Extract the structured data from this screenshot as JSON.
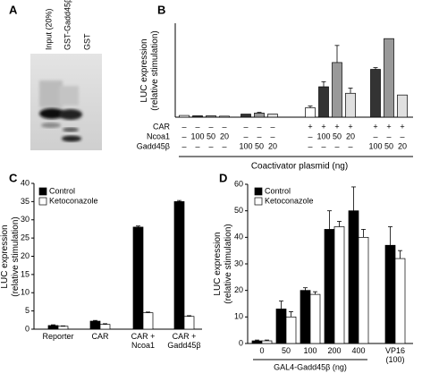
{
  "gel": {
    "panel_label": "A",
    "lanes": [
      "Input (20%)",
      "GST-Gadd45β",
      "GST"
    ]
  },
  "chart_data": [
    {
      "type": "bar",
      "panel_label": "B",
      "y_label": "LUC expression\n(relative stimulation)",
      "values": [
        1,
        0.8,
        0.8,
        0.6,
        1.8,
        2.4,
        1.8,
        5.5,
        17.8,
        32,
        14,
        28,
        46,
        13
      ],
      "errors": [
        0,
        0,
        0,
        0,
        0,
        0.4,
        0,
        1,
        3,
        10,
        3,
        1,
        0,
        0
      ],
      "colors": [
        "#ffffff",
        "#333333",
        "#999999",
        "#e0e0e0",
        "#333333",
        "#999999",
        "#e0e0e0",
        "#ffffff",
        "#333333",
        "#999999",
        "#e0e0e0",
        "#333333",
        "#999999",
        "#e0e0e0"
      ],
      "ylim": [
        0,
        55
      ],
      "table": {
        "rows": [
          {
            "label": "CAR",
            "cells": [
              "–",
              "–",
              "–",
              "–",
              "–",
              "–",
              "–",
              "+",
              "+",
              "+",
              "+",
              "+",
              "+",
              "+"
            ]
          },
          {
            "label": "Ncoa1",
            "cells": [
              "–",
              "100",
              "50",
              "20",
              "–",
              "–",
              "–",
              "–",
              "100",
              "50",
              "20",
              "–",
              "–",
              "–"
            ]
          },
          {
            "label": "Gadd45β",
            "cells": [
              "–",
              "–",
              "–",
              "–",
              "100",
              "50",
              "20",
              "–",
              "–",
              "–",
              "–",
              "100",
              "50",
              "20"
            ]
          }
        ]
      },
      "x_label": "Coactivator plasmid (ng)"
    },
    {
      "type": "bar",
      "panel_label": "C",
      "y_label": "LUC expression\n(relative stimulation)",
      "categories": [
        "Reporter",
        "CAR",
        "CAR +\nNcoa1",
        "CAR +\nGadd45β"
      ],
      "series": [
        {
          "name": "Control",
          "color": "#000000",
          "values": [
            1,
            2.2,
            28,
            35
          ],
          "errors": [
            0.2,
            0.2,
            0.3,
            0.3
          ]
        },
        {
          "name": "Ketoconazole",
          "color": "#ffffff",
          "values": [
            0.8,
            1.3,
            4.5,
            3.5
          ],
          "errors": [
            0.1,
            0.2,
            0.2,
            0.2
          ]
        }
      ],
      "ylim": [
        0,
        40
      ],
      "yticks": [
        0,
        5,
        10,
        15,
        20,
        25,
        30,
        35,
        40
      ],
      "legend": "upper left"
    },
    {
      "type": "bar",
      "panel_label": "D",
      "y_label": "LUC expression\n(relative stimulation)",
      "categories": [
        "0",
        "50",
        "100",
        "200",
        "400",
        "VP16\n(100)"
      ],
      "series": [
        {
          "name": "Control",
          "color": "#000000",
          "values": [
            1,
            13,
            20,
            43,
            50,
            37
          ],
          "errors": [
            0.3,
            3,
            1,
            7,
            9,
            7
          ]
        },
        {
          "name": "Ketoconazole",
          "color": "#ffffff",
          "values": [
            1,
            10,
            18.5,
            44,
            40,
            32
          ],
          "errors": [
            0.3,
            2,
            1,
            2,
            3,
            3
          ]
        }
      ],
      "ylim": [
        0,
        60
      ],
      "yticks": [
        0,
        10,
        20,
        30,
        40,
        50,
        60
      ],
      "legend": "upper left",
      "group_label": "GAL4-Gadd45β (ng)"
    }
  ]
}
